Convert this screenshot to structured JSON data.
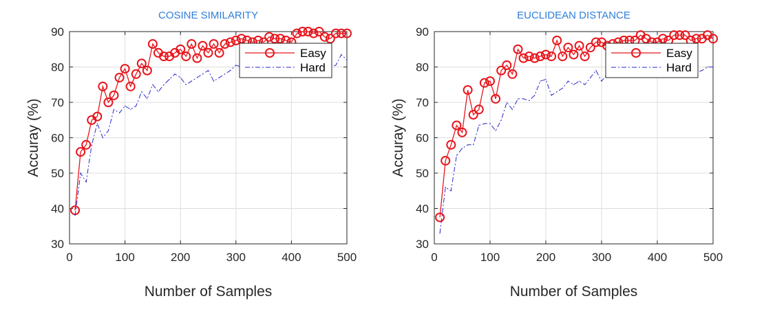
{
  "chart_data": [
    {
      "type": "line",
      "title": "COSINE SIMILARITY",
      "xlabel": "Number of Samples",
      "ylabel": "Accuray (%)",
      "xlim": [
        0,
        500
      ],
      "ylim": [
        30,
        90
      ],
      "xticks": [
        "0",
        "100",
        "200",
        "300",
        "400",
        "500"
      ],
      "yticks": [
        "30",
        "40",
        "50",
        "60",
        "70",
        "80",
        "90"
      ],
      "grid": true,
      "legend_position": "top-right",
      "x": [
        10,
        20,
        30,
        40,
        50,
        60,
        70,
        80,
        90,
        100,
        110,
        120,
        130,
        140,
        150,
        160,
        170,
        180,
        190,
        200,
        210,
        220,
        230,
        240,
        250,
        260,
        270,
        280,
        290,
        300,
        310,
        320,
        330,
        340,
        350,
        360,
        370,
        380,
        390,
        400,
        410,
        420,
        430,
        440,
        450,
        460,
        470,
        480,
        490,
        500
      ],
      "series": [
        {
          "name": "Easy",
          "style": "solid-circles",
          "values": [
            39.5,
            56,
            58,
            65,
            66,
            74.5,
            70,
            72,
            77,
            79.5,
            74.5,
            78,
            81,
            79,
            86.5,
            84,
            83,
            83,
            84,
            85,
            83,
            86.5,
            82.5,
            86,
            84,
            86.5,
            84,
            86.5,
            87,
            87.5,
            88,
            87.5,
            87,
            87.5,
            87,
            88.5,
            88,
            88,
            87.5,
            87,
            89.5,
            90,
            90,
            89.5,
            90,
            88.5,
            88,
            89.5,
            89.5,
            89.5
          ]
        },
        {
          "name": "Hard",
          "style": "dash-dot",
          "values": [
            38,
            50,
            47.5,
            58,
            64,
            60,
            62,
            68,
            67,
            69,
            68,
            69,
            73,
            71,
            75,
            73,
            75,
            76.5,
            78,
            77,
            75,
            76,
            77,
            78,
            79,
            76,
            77,
            78,
            79,
            80.5,
            80,
            79,
            78.5,
            79.5,
            80,
            81,
            80.5,
            79,
            80,
            79.5,
            80,
            81,
            80.5,
            81,
            81,
            79,
            80,
            80.5,
            83.5,
            82
          ]
        }
      ]
    },
    {
      "type": "line",
      "title": "EUCLIDEAN DISTANCE",
      "xlabel": "Number of Samples",
      "ylabel": "Accuray (%)",
      "xlim": [
        0,
        500
      ],
      "ylim": [
        30,
        90
      ],
      "xticks": [
        "0",
        "100",
        "200",
        "300",
        "400",
        "500"
      ],
      "yticks": [
        "30",
        "40",
        "50",
        "60",
        "70",
        "80",
        "90"
      ],
      "grid": true,
      "legend_position": "top-right",
      "x": [
        10,
        20,
        30,
        40,
        50,
        60,
        70,
        80,
        90,
        100,
        110,
        120,
        130,
        140,
        150,
        160,
        170,
        180,
        190,
        200,
        210,
        220,
        230,
        240,
        250,
        260,
        270,
        280,
        290,
        300,
        310,
        320,
        330,
        340,
        350,
        360,
        370,
        380,
        390,
        400,
        410,
        420,
        430,
        440,
        450,
        460,
        470,
        480,
        490,
        500
      ],
      "series": [
        {
          "name": "Easy",
          "style": "solid-circles",
          "values": [
            37.5,
            53.5,
            58,
            63.5,
            61.5,
            73.5,
            66.5,
            68,
            75.5,
            76,
            71,
            79,
            80.5,
            78,
            85,
            82.5,
            83,
            82.5,
            83,
            83.5,
            83,
            87.5,
            83,
            85.5,
            83.5,
            86,
            83,
            85.5,
            87,
            87,
            86,
            86.5,
            87,
            87.5,
            87.5,
            87.5,
            89,
            88,
            87,
            87,
            88,
            87.5,
            89,
            89,
            89,
            87.5,
            88,
            88,
            89,
            88
          ]
        },
        {
          "name": "Hard",
          "style": "dash-dot",
          "values": [
            33,
            46,
            45,
            55,
            57,
            58,
            58,
            63.5,
            64,
            64,
            62,
            65,
            70,
            68,
            71,
            71,
            70.5,
            72,
            76,
            76.5,
            72,
            73,
            74,
            76,
            75,
            76,
            75,
            77,
            79,
            76,
            78,
            77,
            77.5,
            78,
            79,
            80,
            80,
            79.5,
            78,
            78,
            77.5,
            79,
            79,
            79,
            80,
            79,
            78.5,
            79,
            80,
            80
          ]
        }
      ]
    }
  ],
  "colors": {
    "easy": "#e8141b",
    "hard": "#2626cc",
    "title": "#2f7ed8",
    "axis": "#262626",
    "grid": "#dcdcdc"
  }
}
